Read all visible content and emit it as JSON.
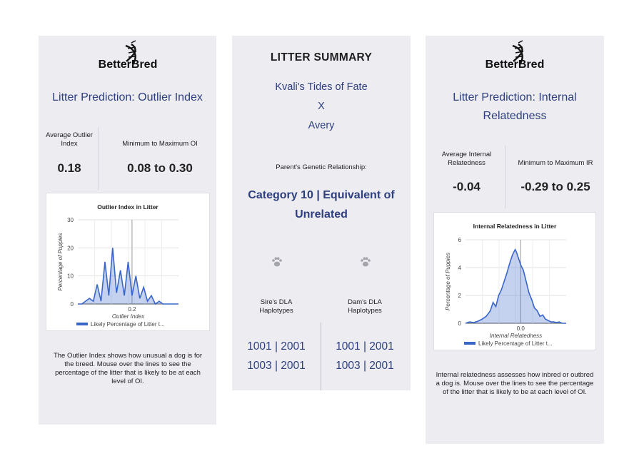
{
  "brand": {
    "logo_text": "BetterBred"
  },
  "left_card": {
    "title": "Litter Prediction: Outlier Index",
    "avg_label": "Average Outlier Index",
    "range_label": "Minimum to Maximum OI",
    "avg_value": "0.18",
    "range_value": "0.08 to 0.30",
    "description": "The Outlier Index shows how unusual a dog is for the breed. Mouse over the lines to see the percentage of the litter that is likely to be at each level of OI."
  },
  "summary_card": {
    "title": "LITTER SUMMARY",
    "sire_name": "Kvali's Tides of Fate",
    "cross": "X",
    "dam_name": "Avery",
    "relationship_label": "Parent's Genetic Relationship:",
    "relationship_value": "Category 10 | Equivalent of Unrelated",
    "paw_icon": "paw-icon",
    "sire_label": "Sire's DLA Haplotypes",
    "dam_label": "Dam's DLA Haplotypes",
    "sire_haplotypes": [
      "1001 | 2001",
      "1003 | 2001"
    ],
    "dam_haplotypes": [
      "1001 | 2001",
      "1003 | 2001"
    ]
  },
  "right_card": {
    "title": "Litter Prediction: Internal Relatedness",
    "avg_label": "Average Internal Relatedness",
    "range_label": "Minimum to Maximum IR",
    "avg_value": "-0.04",
    "range_value": "-0.29 to 0.25",
    "description": "Internal relatedness assesses how inbred or outbred a dog is. Mouse over the lines to see the percentage of the litter that is likely to be at each level of OI."
  },
  "chart_data": [
    {
      "type": "area",
      "title": "Outlier Index in Litter",
      "xlabel": "Outlier Index",
      "ylabel": "Percentage of Puppies",
      "legend": "Likely Percentage of Litter t...",
      "legend_position": "bottom",
      "grid": true,
      "x_ticks": [
        "0.2"
      ],
      "y_ticks": [
        0,
        10,
        20,
        30
      ],
      "ylim": [
        0,
        30
      ],
      "xlim": [
        0.06,
        0.32
      ],
      "reference_line_x": 0.2,
      "x": [
        0.06,
        0.07,
        0.08,
        0.09,
        0.1,
        0.11,
        0.12,
        0.13,
        0.14,
        0.15,
        0.16,
        0.17,
        0.18,
        0.19,
        0.2,
        0.21,
        0.22,
        0.23,
        0.24,
        0.25,
        0.26,
        0.27,
        0.28,
        0.29,
        0.3,
        0.31,
        0.32
      ],
      "values": [
        0,
        0,
        1,
        2,
        1,
        7,
        1,
        15,
        3,
        20,
        4,
        12,
        3,
        15,
        3,
        10,
        2,
        6,
        1,
        3,
        0,
        1,
        0,
        0,
        0,
        0,
        0
      ],
      "color": "#3a66c9"
    },
    {
      "type": "area",
      "title": "Internal Relatedness in Litter",
      "xlabel": "Internal Relatedness",
      "ylabel": "Percentage of Puppies",
      "legend": "Likely Percentage of Litter t...",
      "legend_position": "bottom",
      "grid": true,
      "x_ticks": [
        "0.0"
      ],
      "y_ticks": [
        0,
        2,
        4,
        6
      ],
      "ylim": [
        0,
        6
      ],
      "xlim": [
        -0.4,
        0.33
      ],
      "reference_line_x": 0.0,
      "x": [
        -0.4,
        -0.37,
        -0.34,
        -0.31,
        -0.28,
        -0.25,
        -0.22,
        -0.2,
        -0.18,
        -0.16,
        -0.14,
        -0.12,
        -0.1,
        -0.08,
        -0.06,
        -0.04,
        -0.03,
        -0.02,
        0.0,
        0.02,
        0.04,
        0.06,
        0.08,
        0.1,
        0.12,
        0.14,
        0.16,
        0.18,
        0.2,
        0.22,
        0.24,
        0.26,
        0.28,
        0.3,
        0.33
      ],
      "values": [
        0,
        0.1,
        0.05,
        0.15,
        0.3,
        0.5,
        0.9,
        1.5,
        1.2,
        2.0,
        2.4,
        3.0,
        3.6,
        4.3,
        4.9,
        5.3,
        5.1,
        4.8,
        4.2,
        3.8,
        3.0,
        2.2,
        1.7,
        1.1,
        0.9,
        0.5,
        0.6,
        0.3,
        0.2,
        0.1,
        0.1,
        0.05,
        0.1,
        0,
        0
      ],
      "color": "#3a66c9"
    }
  ]
}
